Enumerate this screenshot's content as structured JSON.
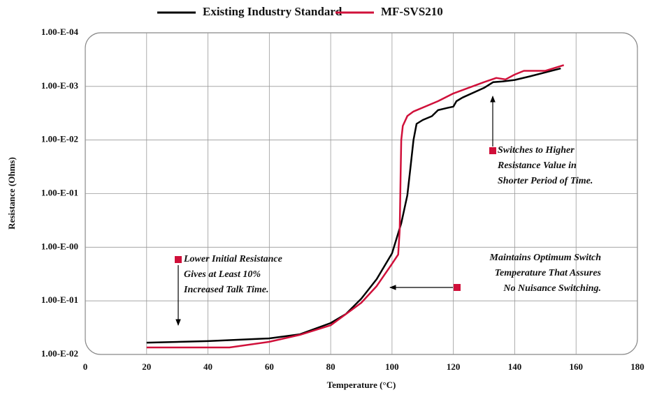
{
  "chart_data": {
    "type": "line",
    "x_label": "Temperature (°C)",
    "y_label": "Resistance (Ohms)",
    "xlim": [
      0,
      180
    ],
    "xticks": [
      0,
      20,
      40,
      60,
      80,
      100,
      120,
      140,
      160,
      180
    ],
    "ylim": [
      0.01,
      10000
    ],
    "log_y": true,
    "grid": true,
    "yticks": [
      {
        "value": 0.01,
        "label": "1.00-E-02"
      },
      {
        "value": 0.1,
        "label": "1.00-E-01"
      },
      {
        "value": 1,
        "label": "1.00-E-00"
      },
      {
        "value": 10,
        "label": "1.00-E-01"
      },
      {
        "value": 100,
        "label": "1.00-E-02"
      },
      {
        "value": 1000,
        "label": "1.00-E-03"
      },
      {
        "value": 10000,
        "label": "1.00-E-04"
      }
    ],
    "series": [
      {
        "name": "Existing Industry Standard",
        "color": "#000000",
        "x": [
          20,
          40,
          60,
          70,
          80,
          85,
          90,
          95,
          100,
          103,
          105,
          106,
          107,
          108,
          110,
          113,
          115,
          118,
          120,
          121,
          123,
          130,
          133,
          136,
          140,
          145,
          155
        ],
        "values": [
          0.0166,
          0.0177,
          0.0199,
          0.0238,
          0.0385,
          0.057,
          0.11,
          0.254,
          0.77,
          2.8,
          9.3,
          30,
          100,
          200,
          236,
          278,
          360,
          396,
          420,
          530,
          620,
          940,
          1200,
          1240,
          1320,
          1540,
          2160
        ]
      },
      {
        "name": "MF-SVS210",
        "color": "#d0103a",
        "x": [
          20,
          47,
          60,
          70,
          80,
          90,
          95,
          100,
          102,
          102.5,
          102.8,
          103,
          103.5,
          105,
          107,
          115,
          120,
          130,
          134,
          137,
          140,
          143,
          150,
          156
        ],
        "values": [
          0.0135,
          0.0135,
          0.0172,
          0.0232,
          0.035,
          0.092,
          0.188,
          0.49,
          0.73,
          2.1,
          23,
          100,
          183,
          280,
          340,
          530,
          740,
          1200,
          1440,
          1350,
          1660,
          1950,
          1950,
          2500
        ]
      }
    ],
    "annotations": [
      {
        "lines": [
          "Lower Initial Resistance",
          "Gives at Least 10%",
          "Increased Talk Time."
        ]
      },
      {
        "lines": [
          "Maintains Optimum Switch",
          "Temperature That Assures",
          "No Nuisance Switching."
        ]
      },
      {
        "lines": [
          "Switches to Higher",
          "Resistance Value in",
          "Shorter Period of Time."
        ]
      }
    ]
  }
}
